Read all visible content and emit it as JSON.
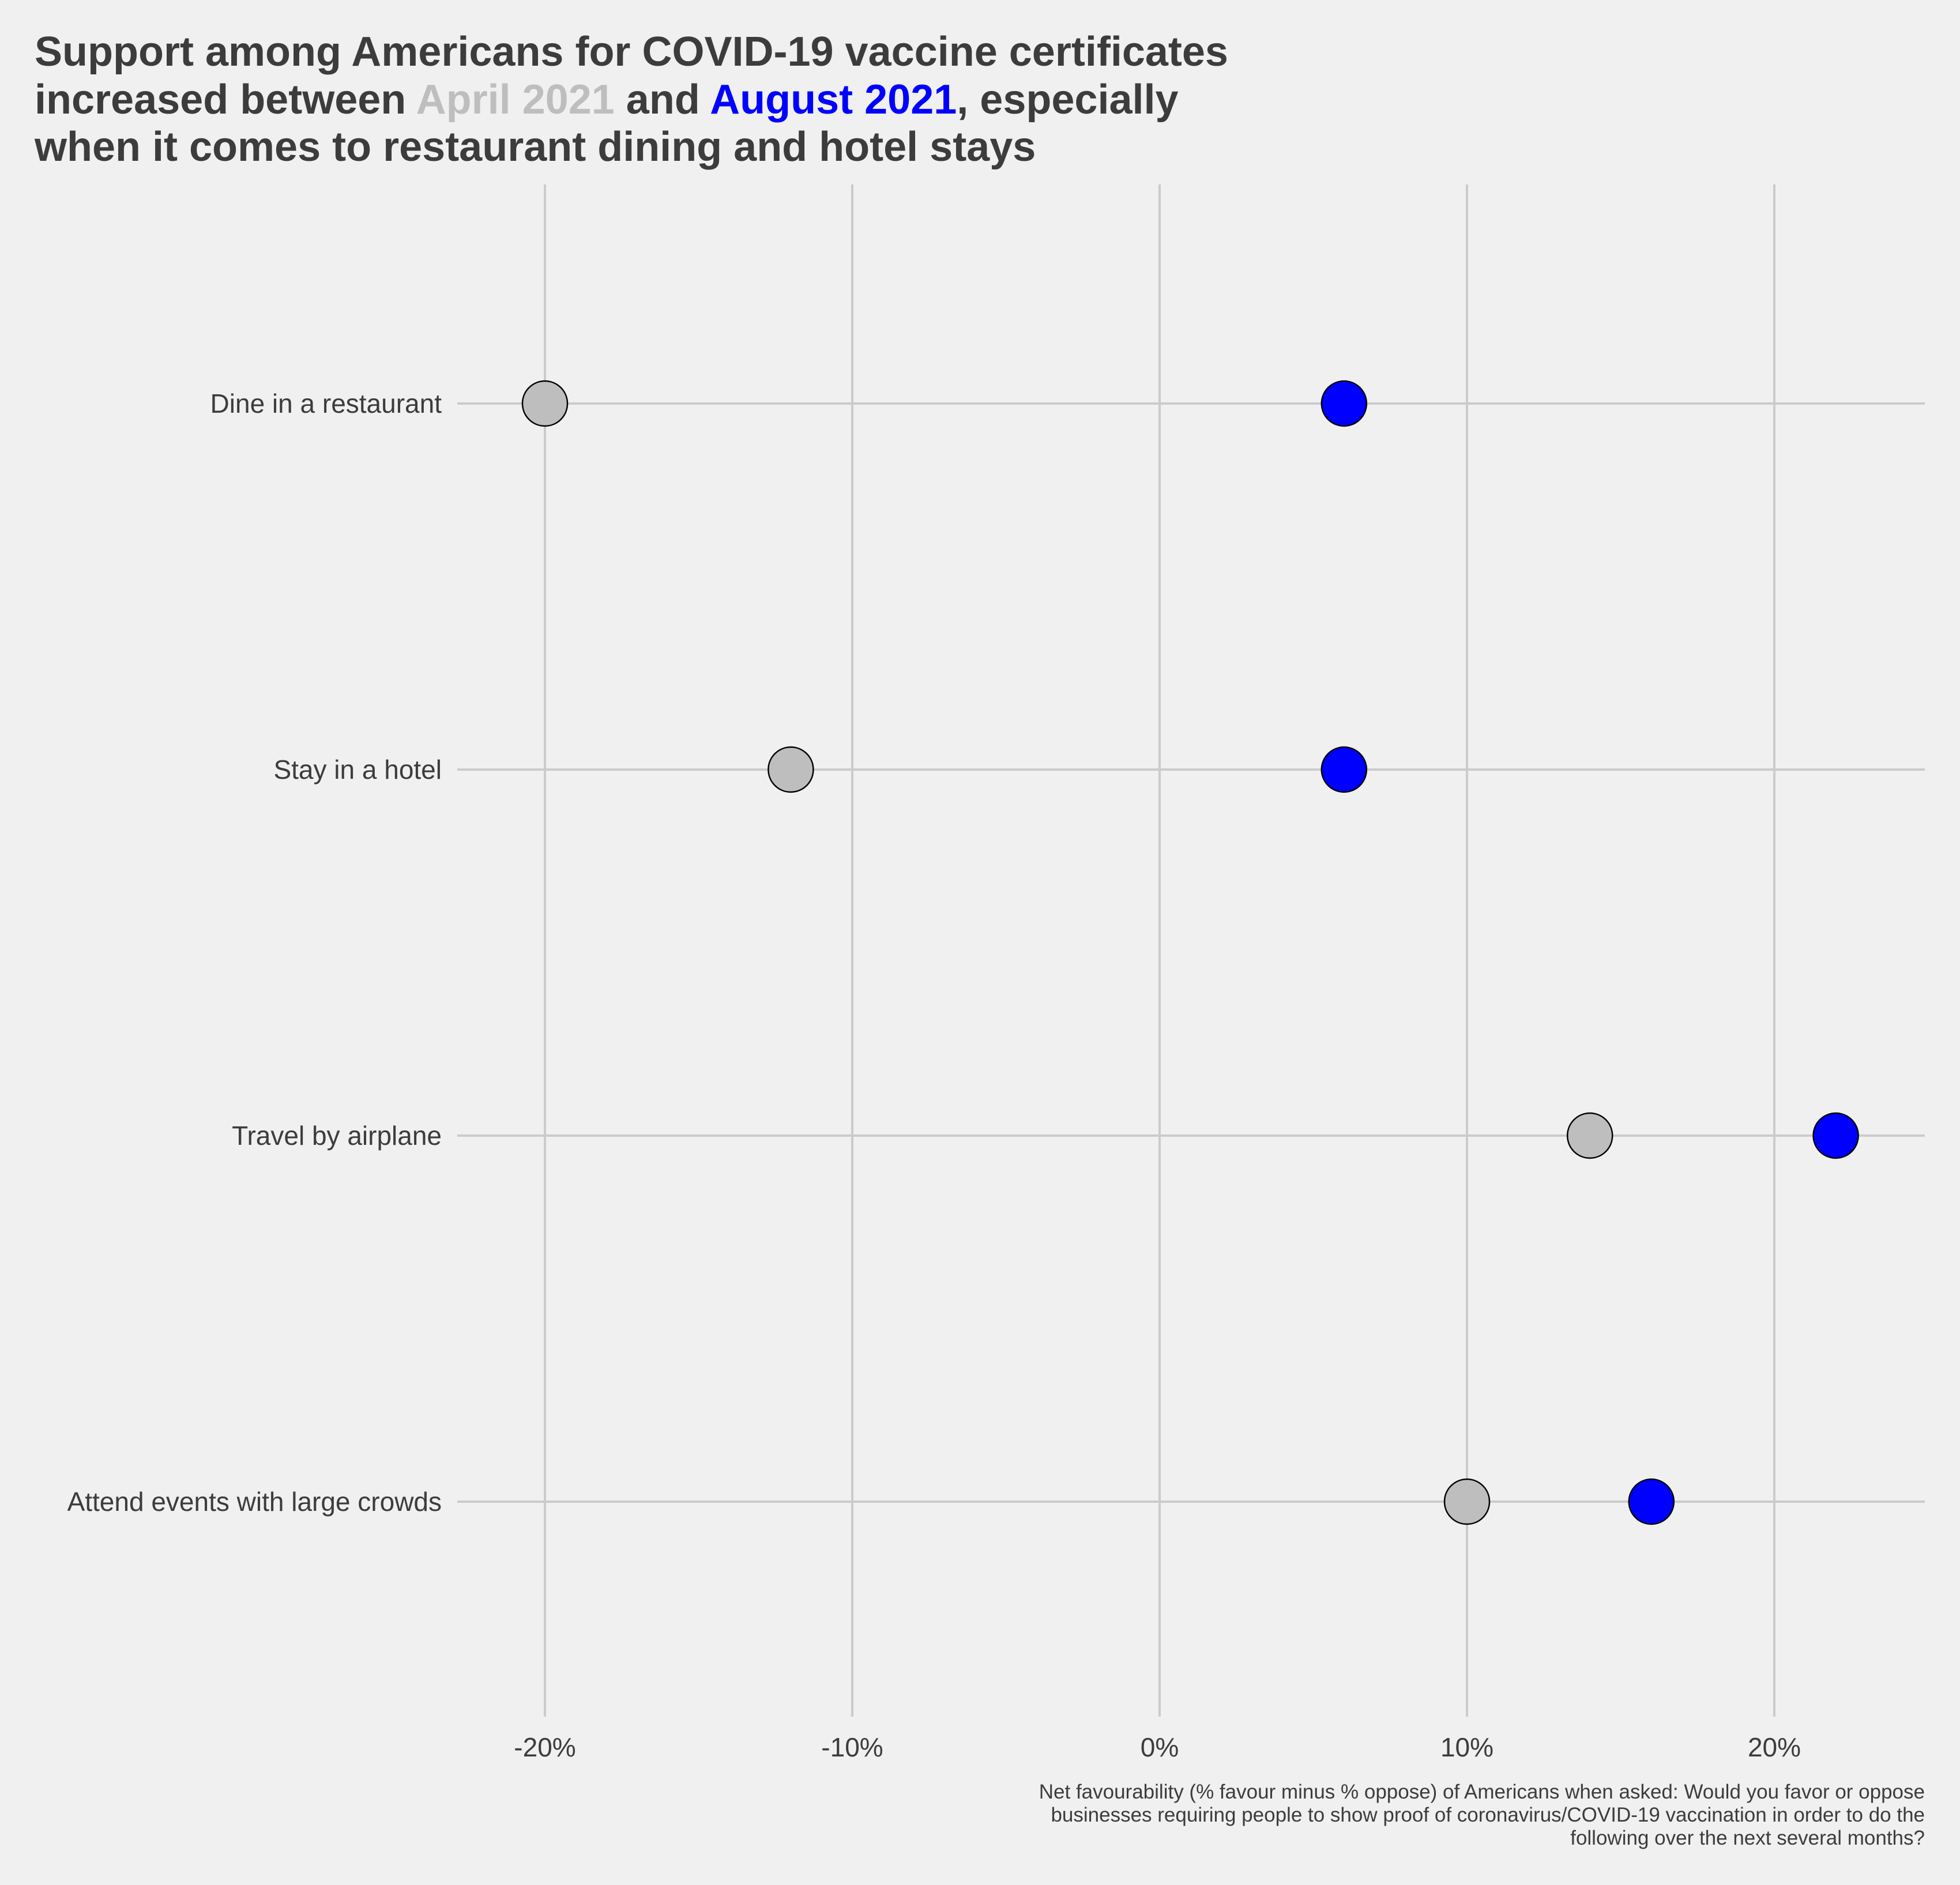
{
  "title": {
    "line1": "Support among Americans for COVID-19 vaccine certificates",
    "line2_before": "increased between ",
    "line2_april": "April 2021",
    "line2_middle": " and ",
    "line2_august": "August 2021",
    "line2_after": ", especially",
    "line3": "when it comes to restaurant dining and hotel stays"
  },
  "caption": {
    "line1": "Net favourability (% favour minus % oppose) of Americans when asked: Would you favor or oppose",
    "line2": "businesses requiring people to show proof of coronavirus/COVID-19 vaccination in order to do the",
    "line3": "following over the next several months?"
  },
  "colors": {
    "background": "#f0f0f0",
    "text": "#3c3c3c",
    "grid": "#cbcbcb",
    "april": "#bebebe",
    "august": "#0000ff",
    "point_outline": "#000000"
  },
  "chart_data": {
    "type": "scatter",
    "xlim": [
      -25,
      25
    ],
    "x_ticks": [
      -20,
      -10,
      0,
      10,
      20
    ],
    "x_tick_labels": [
      "-20%",
      "-10%",
      "0%",
      "10%",
      "20%"
    ],
    "grid": true,
    "categories": [
      "Dine in a restaurant",
      "Stay in a hotel",
      "Travel by airplane",
      "Attend events with large crowds"
    ],
    "series": [
      {
        "name": "April 2021",
        "color": "#bebebe",
        "values": [
          -20,
          -12,
          14,
          10
        ]
      },
      {
        "name": "August 2021",
        "color": "#0000ff",
        "values": [
          6,
          6,
          22,
          16
        ]
      }
    ]
  }
}
